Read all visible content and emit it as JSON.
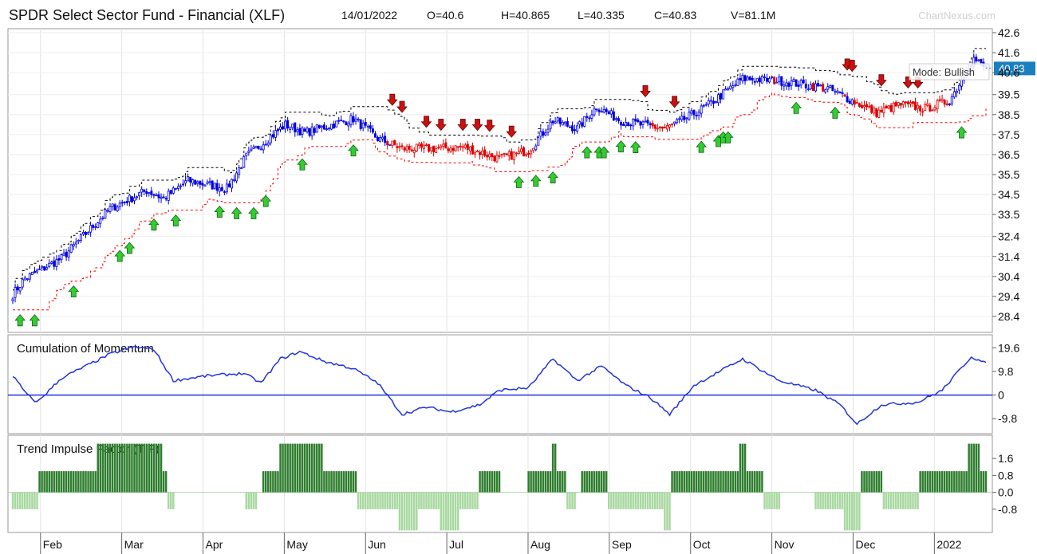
{
  "header": {
    "title": "SPDR Select Sector Fund - Financial (XLF)",
    "date": "14/01/2022",
    "open": "O=40.6",
    "high": "H=40.865",
    "low": "L=40.335",
    "close": "C=40.83",
    "volume": "V=81.1M",
    "brand": "ChartNexus.com"
  },
  "colors": {
    "up": "#0000dd",
    "down": "#dd0000",
    "upper_band": "#000000",
    "lower_band": "#ff0000",
    "momentum": "#2233dd",
    "tif_pos": "#2e7d2e",
    "tif_neg": "#a8d8a0",
    "buy_arrow": "#33cc33",
    "sell_arrow": "#cc1111",
    "last_price_tag": "#1a7fc0"
  },
  "chart_data": [
    {
      "type": "candlestick",
      "ylim": [
        27.6,
        42.8
      ],
      "y_ticks": [
        "42.6",
        "41.6",
        "40.6",
        "39.5",
        "38.5",
        "37.5",
        "36.5",
        "35.5",
        "34.5",
        "33.5",
        "32.4",
        "31.4",
        "30.4",
        "29.4",
        "28.4"
      ],
      "last_price": "40.83",
      "annotation": "Mode: Bullish",
      "x_labels": [
        "Feb",
        "Mar",
        "Apr",
        "May",
        "Jun",
        "Jul",
        "Aug",
        "Sep",
        "Oct",
        "Nov",
        "Dec",
        "2022"
      ],
      "x_label_months": [
        1,
        2,
        3,
        4,
        5,
        6,
        7,
        8,
        9,
        10,
        11,
        12
      ],
      "close_keypoints": [
        [
          0,
          29.5
        ],
        [
          5,
          30.3
        ],
        [
          20,
          31.3
        ],
        [
          40,
          33.8
        ],
        [
          55,
          34.7
        ],
        [
          62,
          34.3
        ],
        [
          72,
          35.2
        ],
        [
          88,
          34.8
        ],
        [
          96,
          36.4
        ],
        [
          112,
          38.0
        ],
        [
          120,
          37.6
        ],
        [
          140,
          38.3
        ],
        [
          150,
          37.3
        ],
        [
          160,
          36.8
        ],
        [
          175,
          36.8
        ],
        [
          185,
          36.9
        ],
        [
          200,
          36.3
        ],
        [
          212,
          36.7
        ],
        [
          222,
          38.2
        ],
        [
          232,
          37.8
        ],
        [
          240,
          38.9
        ],
        [
          250,
          38.2
        ],
        [
          258,
          38.0
        ],
        [
          268,
          37.8
        ],
        [
          275,
          38.2
        ],
        [
          285,
          38.9
        ],
        [
          300,
          40.3
        ],
        [
          315,
          40.2
        ],
        [
          325,
          40.0
        ],
        [
          335,
          39.8
        ],
        [
          345,
          39.2
        ],
        [
          355,
          38.6
        ],
        [
          365,
          39.0
        ],
        [
          375,
          38.8
        ],
        [
          385,
          39.2
        ],
        [
          395,
          41.3
        ],
        [
          400,
          40.8
        ]
      ],
      "sell_arrow_days": [
        156,
        160,
        170,
        176,
        185,
        191,
        196,
        205,
        260,
        272,
        343,
        345,
        357,
        368,
        372
      ],
      "buy_arrow_days": [
        3,
        9,
        25,
        44,
        48,
        58,
        67,
        85,
        92,
        99,
        104,
        119,
        140,
        208,
        215,
        222,
        236,
        241,
        243,
        250,
        256,
        283,
        290,
        292,
        294,
        322,
        338,
        390
      ]
    },
    {
      "type": "line",
      "title": "Cumulation of Momentum",
      "ylim": [
        -16,
        25
      ],
      "y_ticks": [
        "19.6",
        "9.8",
        "0",
        "-9.8"
      ],
      "keypoints": [
        [
          0,
          8
        ],
        [
          6,
          0
        ],
        [
          10,
          -3
        ],
        [
          20,
          7
        ],
        [
          30,
          12
        ],
        [
          40,
          17
        ],
        [
          50,
          20
        ],
        [
          58,
          19
        ],
        [
          66,
          6
        ],
        [
          80,
          8
        ],
        [
          95,
          9
        ],
        [
          102,
          5
        ],
        [
          110,
          15
        ],
        [
          118,
          18
        ],
        [
          128,
          14
        ],
        [
          140,
          11
        ],
        [
          150,
          5
        ],
        [
          160,
          -8
        ],
        [
          170,
          -5
        ],
        [
          180,
          -7
        ],
        [
          192,
          -4
        ],
        [
          200,
          2
        ],
        [
          212,
          3
        ],
        [
          222,
          15
        ],
        [
          232,
          6
        ],
        [
          242,
          12
        ],
        [
          252,
          4
        ],
        [
          262,
          -1
        ],
        [
          270,
          -8
        ],
        [
          280,
          4
        ],
        [
          300,
          15
        ],
        [
          315,
          6
        ],
        [
          330,
          2
        ],
        [
          340,
          -4
        ],
        [
          347,
          -12
        ],
        [
          357,
          -4
        ],
        [
          372,
          -3
        ],
        [
          382,
          2
        ],
        [
          394,
          16
        ],
        [
          400,
          13
        ]
      ]
    },
    {
      "type": "bar",
      "title": "Trend Impulse Factor (TIF)",
      "ylim": [
        -1.9,
        2.7
      ],
      "y_ticks": [
        "1.6",
        "0.8",
        "0.0",
        "-0.8"
      ]
    }
  ]
}
